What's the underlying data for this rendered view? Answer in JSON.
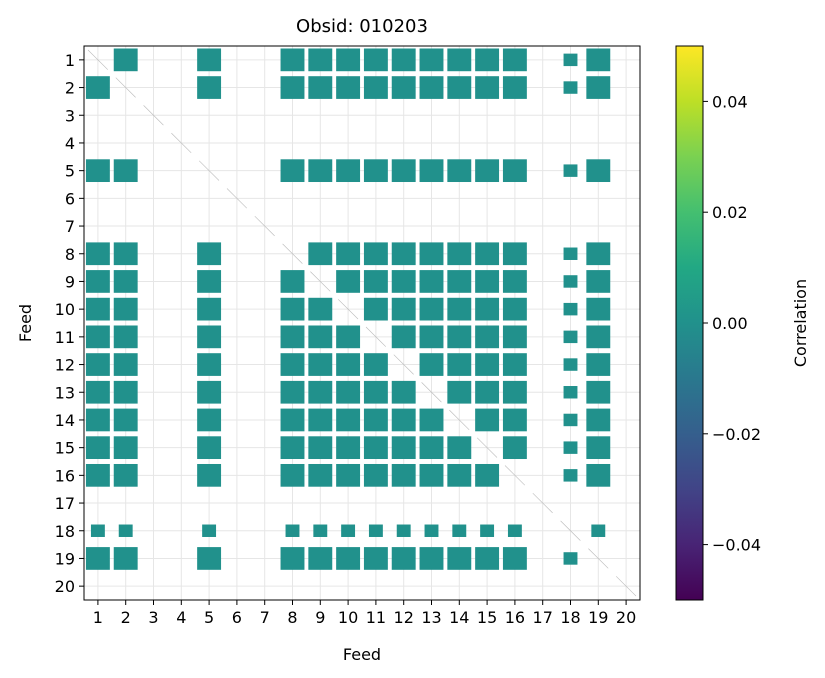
{
  "chart_data": {
    "type": "heatmap",
    "title": "Obsid: 010203",
    "xlabel": "Feed",
    "ylabel": "Feed",
    "x_ticks": [
      "1",
      "2",
      "3",
      "4",
      "5",
      "6",
      "7",
      "8",
      "9",
      "10",
      "11",
      "12",
      "13",
      "14",
      "15",
      "16",
      "17",
      "18",
      "19",
      "20"
    ],
    "y_ticks": [
      "1",
      "2",
      "3",
      "4",
      "5",
      "6",
      "7",
      "8",
      "9",
      "10",
      "11",
      "12",
      "13",
      "14",
      "15",
      "16",
      "17",
      "18",
      "19",
      "20"
    ],
    "xlim": [
      0.5,
      20.5
    ],
    "ylim": [
      0.5,
      20.5
    ],
    "grid": true,
    "colorbar": {
      "label": "Correlation",
      "vmin": -0.05,
      "vmax": 0.05,
      "ticks": [
        -0.04,
        -0.02,
        0.0,
        0.02,
        0.04
      ],
      "tick_labels": [
        "−0.04",
        "−0.02",
        "0.00",
        "0.02",
        "0.04"
      ],
      "colormap": "viridis"
    },
    "fill_color": "#21918c",
    "active_feeds": [
      1,
      2,
      5,
      8,
      9,
      10,
      11,
      12,
      13,
      14,
      15,
      16,
      19
    ],
    "partial_feeds": [
      18
    ],
    "inactive_feeds": [
      3,
      4,
      6,
      7,
      17,
      20
    ],
    "approx_value": 0.0
  }
}
